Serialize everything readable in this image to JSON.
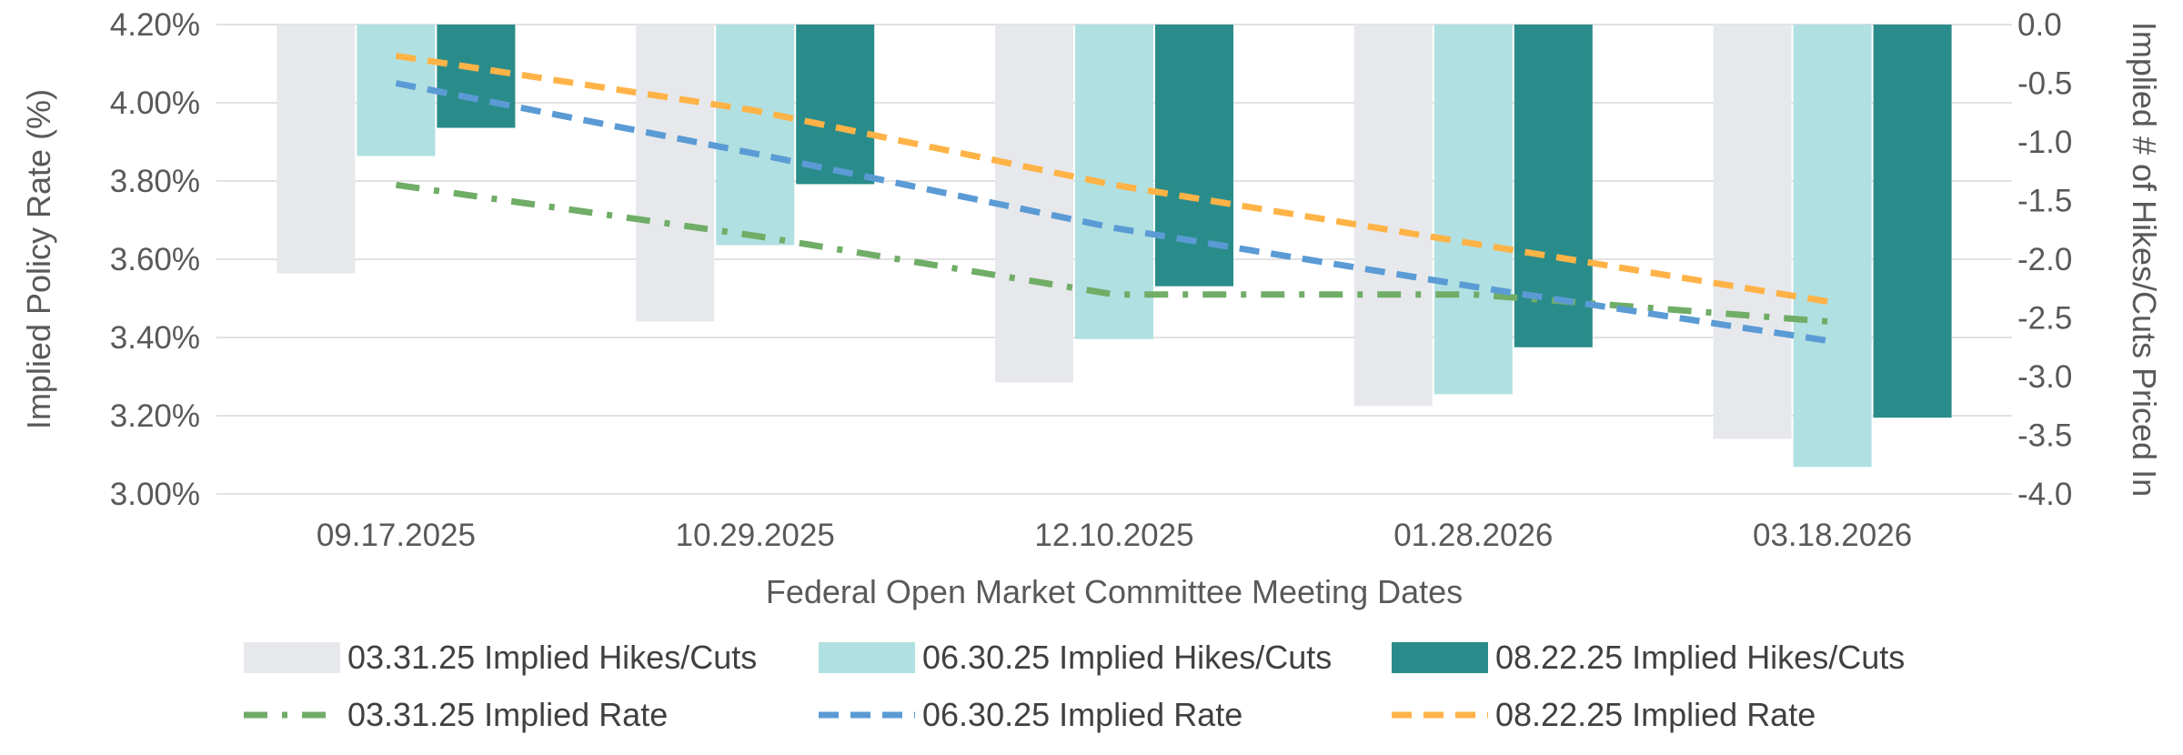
{
  "chart_data": {
    "type": "bar",
    "title": "",
    "xlabel": "Federal Open Market Committee Meeting Dates",
    "ylabel": "Implied Policy Rate (%)",
    "y2label": "Implied # of Hikes/Cuts Priced In",
    "categories": [
      "09.17.2025",
      "10.29.2025",
      "12.10.2025",
      "01.28.2026",
      "03.18.2026"
    ],
    "ylim": [
      3.0,
      4.2
    ],
    "yticks": [
      3.0,
      3.2,
      3.4,
      3.6,
      3.8,
      4.0,
      4.2
    ],
    "ytick_labels": [
      "3.00%",
      "3.20%",
      "3.40%",
      "3.60%",
      "3.80%",
      "4.00%",
      "4.20%"
    ],
    "y2lim": [
      -4.0,
      0.0
    ],
    "y2ticks": [
      0.0,
      -0.5,
      -1.0,
      -1.5,
      -2.0,
      -2.5,
      -3.0,
      -3.5,
      -4.0
    ],
    "y2tick_labels": [
      "0.0",
      "-0.5",
      "-1.0",
      "-1.5",
      "-2.0",
      "-2.5",
      "-3.0",
      "-3.5",
      "-4.0"
    ],
    "grid": true,
    "legend_position": "bottom",
    "bar_series": [
      {
        "name": "03.31.25 Implied Hikes/Cuts",
        "axis": "right",
        "color": "#e7e8ec",
        "values": [
          -2.12,
          -2.53,
          -3.05,
          -3.25,
          -3.53
        ]
      },
      {
        "name": "06.30.25 Implied Hikes/Cuts",
        "axis": "right",
        "color": "#b0e0e1",
        "values": [
          -1.12,
          -1.88,
          -2.68,
          -3.15,
          -3.77
        ]
      },
      {
        "name": "08.22.25 Implied Hikes/Cuts",
        "axis": "right",
        "color": "#2a8c8a",
        "values": [
          -0.88,
          -1.36,
          -2.23,
          -2.75,
          -3.35
        ]
      }
    ],
    "line_series": [
      {
        "name": "03.31.25 Implied Rate",
        "axis": "left",
        "color": "#70ad67",
        "dash": "dashdot",
        "values": [
          3.79,
          3.66,
          3.51,
          3.51,
          3.44
        ]
      },
      {
        "name": "06.30.25 Implied Rate",
        "axis": "left",
        "color": "#5b9bd5",
        "dash": "dash",
        "values": [
          4.05,
          3.87,
          3.68,
          3.53,
          3.39
        ]
      },
      {
        "name": "08.22.25 Implied Rate",
        "axis": "left",
        "color": "#ffb347",
        "dash": "dash",
        "values": [
          4.12,
          3.98,
          3.79,
          3.64,
          3.49
        ]
      }
    ]
  }
}
